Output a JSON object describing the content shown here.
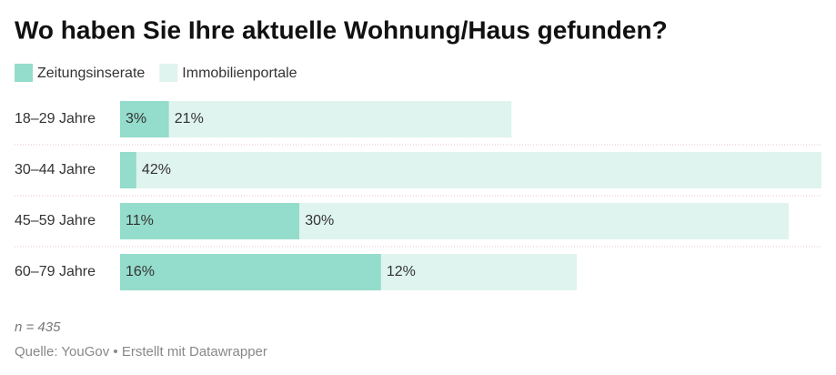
{
  "chart_data": {
    "type": "stacked-bar-horizontal",
    "title": "Wo haben Sie Ihre aktuelle Wohnung/Haus gefunden?",
    "categories": [
      "18–29 Jahre",
      "30–44 Jahre",
      "45–59 Jahre",
      "60–79 Jahre"
    ],
    "series": [
      {
        "name": "Zeitungsinserate",
        "color": "#94dccb",
        "values": [
          3,
          1,
          11,
          16
        ],
        "value_labels": [
          "3%",
          null,
          "11%",
          "16%"
        ]
      },
      {
        "name": "Immobilienportale",
        "color": "#dff4ee",
        "values": [
          21,
          42,
          30,
          12
        ],
        "value_labels": [
          "21%",
          "42%",
          "30%",
          "12%"
        ]
      }
    ],
    "note": "n = 435",
    "source": "Quelle: YouGov • Erstellt mit Datawrapper"
  }
}
